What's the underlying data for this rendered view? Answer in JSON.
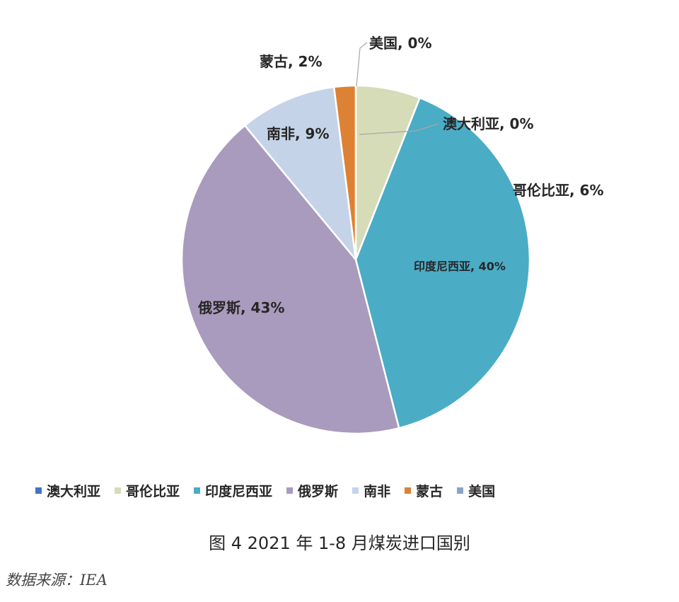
{
  "chart_data": {
    "type": "pie",
    "slices": [
      {
        "name": "澳大利亚",
        "value": 0,
        "label": "澳大利亚, 0%",
        "color": "#4472C4"
      },
      {
        "name": "哥伦比亚",
        "value": 6,
        "label": "哥伦比亚, 6%",
        "color": "#D6DCB8"
      },
      {
        "name": "印度尼西亚",
        "value": 40,
        "label": "印度尼西亚, 40%",
        "color": "#4BACC6"
      },
      {
        "name": "俄罗斯",
        "value": 43,
        "label": "俄罗斯, 43%",
        "color": "#A99BBD"
      },
      {
        "name": "南非",
        "value": 9,
        "label": "南非, 9%",
        "color": "#C5D3E8"
      },
      {
        "name": "蒙古",
        "value": 2,
        "label": "蒙古, 2%",
        "color": "#DD8234"
      },
      {
        "name": "美国",
        "value": 0,
        "label": "美国, 0%",
        "color": "#8EA2C8"
      }
    ],
    "legend_position": "bottom"
  },
  "caption": "图 4 2021 年 1-8 月煤炭进口国别",
  "source": "数据来源：IEA"
}
